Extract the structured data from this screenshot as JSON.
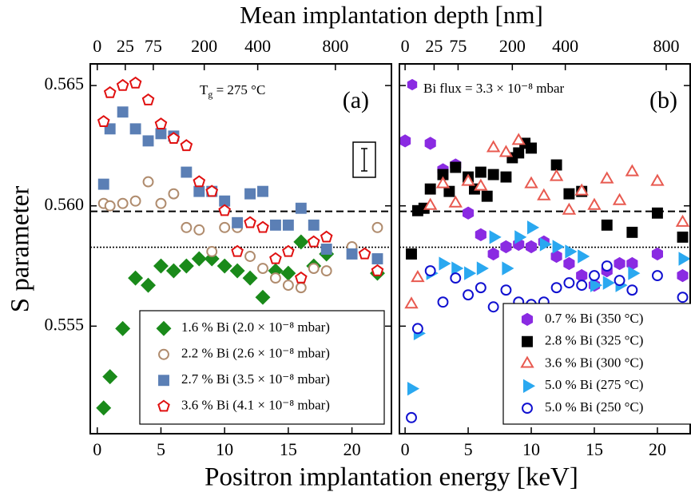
{
  "chart_data": [
    {
      "type": "scatter",
      "xlabel": "Positron implantation energy [keV]",
      "x2label": "Mean implantation depth [nm]",
      "ylabel": "S parameter",
      "xlim": [
        -0.55,
        23.1
      ],
      "ylim": [
        0.55053,
        0.5659
      ],
      "xticks": [
        0,
        5,
        10,
        15,
        20
      ],
      "x2ticks": [
        0,
        {
          "value": 2.2,
          "label": "25"
        },
        {
          "value": 4.4,
          "label": "75"
        },
        {
          "value": 8.4,
          "label": "200"
        },
        {
          "value": 12.6,
          "label": "400"
        },
        {
          "value": 18.7,
          "label": "800"
        }
      ],
      "yticks": [
        {
          "value": 0.555,
          "label": "0.555"
        },
        {
          "value": 0.56,
          "label": "0.560"
        },
        {
          "value": 0.565,
          "label": "0.565"
        }
      ],
      "grid": false,
      "hlines": [
        {
          "value": 0.55977,
          "style": "dashed"
        },
        {
          "value": 0.55828,
          "style": "dotted"
        }
      ],
      "legend": "lower right",
      "annotations": [
        {
          "text": "(a)"
        },
        {
          "text": "T",
          "subscript": "g",
          "suffix": " = 275 °C"
        }
      ],
      "series": [
        {
          "name": "1.6 % Bi (2.0 × 10⁻⁸ mbar)",
          "color": "#1a8a1a",
          "marker": "diamond",
          "filled": true,
          "x": [
            0.5,
            1,
            2,
            3,
            4,
            5,
            6,
            7,
            8,
            9,
            10,
            11,
            12,
            13,
            14,
            15,
            16,
            17,
            18,
            22
          ],
          "values": [
            0.5516,
            0.5529,
            0.5549,
            0.557,
            0.5567,
            0.5575,
            0.5573,
            0.5575,
            0.5578,
            0.5578,
            0.5575,
            0.5573,
            0.557,
            0.5562,
            0.5573,
            0.5572,
            0.5585,
            0.5575,
            0.558,
            0.5572
          ]
        },
        {
          "name": "2.2 % Bi (2.6 × 10⁻⁸ mbar)",
          "color": "#b08c6e",
          "marker": "circle",
          "filled": false,
          "x": [
            0.5,
            1,
            2,
            3,
            4,
            5,
            6,
            7,
            8,
            9,
            10,
            11,
            12,
            13,
            14,
            15,
            16,
            17,
            18,
            20,
            22
          ],
          "values": [
            0.5601,
            0.56,
            0.5601,
            0.5602,
            0.561,
            0.5601,
            0.5605,
            0.5591,
            0.559,
            0.5581,
            0.5591,
            0.5591,
            0.5579,
            0.5574,
            0.557,
            0.5567,
            0.5566,
            0.5574,
            0.5573,
            0.5583,
            0.5591
          ]
        },
        {
          "name": "2.7 % Bi (3.5 × 10⁻⁸ mbar)",
          "color": "#5b7fb5",
          "marker": "square",
          "filled": true,
          "x": [
            0.5,
            1,
            2,
            3,
            4,
            5,
            6,
            7,
            8,
            9,
            10,
            11,
            12,
            13,
            14,
            15,
            16,
            17,
            18,
            20,
            22
          ],
          "values": [
            0.5609,
            0.5632,
            0.5639,
            0.5632,
            0.5627,
            0.563,
            0.5629,
            0.5614,
            0.5606,
            0.5606,
            0.5602,
            0.5593,
            0.5605,
            0.5606,
            0.5592,
            0.5592,
            0.5599,
            0.5592,
            0.5582,
            0.558,
            0.5578
          ]
        },
        {
          "name": "3.6 % Bi (4.1 × 10⁻⁸ mbar)",
          "color": "#e01010",
          "marker": "pentagon",
          "filled": false,
          "x": [
            0.5,
            1,
            2,
            3,
            4,
            5,
            6,
            7,
            8,
            9,
            10,
            11,
            12,
            13,
            14,
            15,
            16,
            17,
            18,
            21,
            22
          ],
          "values": [
            0.5635,
            0.5647,
            0.565,
            0.5651,
            0.5644,
            0.5634,
            0.5628,
            0.5625,
            0.561,
            0.5606,
            0.5598,
            0.5581,
            0.5593,
            0.5591,
            0.5578,
            0.5581,
            0.557,
            0.5585,
            0.5587,
            0.558,
            0.5573
          ]
        }
      ]
    },
    {
      "type": "scatter",
      "xlim": [
        -0.45,
        22.6
      ],
      "ylim": [
        0.55053,
        0.5659
      ],
      "xticks": [
        0,
        5,
        10,
        15,
        20
      ],
      "x2ticks": [
        0,
        {
          "value": 2.3,
          "label": "25"
        },
        {
          "value": 4.2,
          "label": "75"
        },
        {
          "value": 8.5,
          "label": "200"
        },
        {
          "value": 12.7,
          "label": "400"
        },
        {
          "value": 20.7,
          "label": "800"
        }
      ],
      "yticks": [
        0.555,
        0.56,
        0.565
      ],
      "grid": false,
      "hlines": [
        {
          "value": 0.55977,
          "style": "dashed"
        },
        {
          "value": 0.55828,
          "style": "dotted"
        }
      ],
      "legend": "lower right",
      "annotations": [
        {
          "text": "(b)"
        },
        {
          "text": "Bi flux  = 3.3 × 10⁻⁸ mbar"
        }
      ],
      "series": [
        {
          "name": "0.7 % Bi (350 °C)",
          "color": "#8a2be2",
          "marker": "hexagon",
          "filled": true,
          "x": [
            0,
            2,
            3,
            4,
            5,
            6,
            7,
            8,
            9,
            10,
            11,
            12,
            13,
            14,
            15,
            16,
            17,
            18,
            20,
            22
          ],
          "values": [
            0.5627,
            0.5626,
            0.5615,
            0.5617,
            0.5597,
            0.5588,
            0.558,
            0.5583,
            0.5584,
            0.5583,
            0.5585,
            0.5579,
            0.5576,
            0.5571,
            0.5567,
            0.5573,
            0.5576,
            0.5576,
            0.558,
            0.5571
          ]
        },
        {
          "name": "2.8 % Bi (325 °C)",
          "color": "#000000",
          "marker": "square",
          "filled": true,
          "x": [
            0.5,
            1,
            1.5,
            2,
            3,
            3.5,
            4,
            5,
            5.5,
            6,
            6.5,
            7,
            8,
            8.5,
            9,
            9.5,
            10,
            12,
            13,
            14,
            16,
            18,
            20,
            22
          ],
          "values": [
            0.558,
            0.5598,
            0.5599,
            0.5607,
            0.5613,
            0.5606,
            0.5616,
            0.5612,
            0.5607,
            0.5614,
            0.5604,
            0.5613,
            0.5612,
            0.562,
            0.5622,
            0.5626,
            0.5624,
            0.5617,
            0.5605,
            0.5606,
            0.5592,
            0.5589,
            0.5597,
            0.5587
          ]
        },
        {
          "name": "3.6 % Bi (300 °C)",
          "color": "#e85a50",
          "marker": "triangle-up",
          "filled": false,
          "x": [
            0.5,
            1,
            2,
            3,
            4,
            5,
            6,
            7,
            8,
            9,
            10,
            11,
            12,
            13,
            14,
            15,
            16,
            17,
            18,
            20,
            22
          ],
          "values": [
            0.5559,
            0.557,
            0.56,
            0.5609,
            0.5601,
            0.561,
            0.5608,
            0.5624,
            0.5622,
            0.5627,
            0.5609,
            0.5604,
            0.5612,
            0.5598,
            0.5606,
            0.56,
            0.5611,
            0.5602,
            0.5614,
            0.561,
            0.5593
          ]
        },
        {
          "name": "5.0 % Bi (275 °C)",
          "color": "#2aa8f0",
          "marker": "triangle-right",
          "filled": true,
          "x": [
            0.5,
            1,
            2,
            3,
            4,
            5,
            6,
            7,
            8,
            9,
            10,
            11,
            12,
            13,
            14,
            15,
            16,
            17,
            18,
            22
          ],
          "values": [
            0.5524,
            0.5547,
            0.5572,
            0.5576,
            0.5574,
            0.5572,
            0.5574,
            0.5587,
            0.5574,
            0.5587,
            0.5591,
            0.5584,
            0.5583,
            0.5581,
            0.5579,
            0.5567,
            0.5568,
            0.5567,
            0.5572,
            0.5578
          ]
        },
        {
          "name": "5.0 % Bi (250 °C)",
          "color": "#1010d0",
          "marker": "circle",
          "filled": false,
          "x": [
            0.5,
            1,
            2,
            3,
            4,
            5,
            6,
            7,
            8,
            9,
            10,
            11,
            12,
            13,
            14,
            15,
            16,
            17,
            18,
            20,
            21.5,
            22
          ],
          "values": [
            0.5512,
            0.5549,
            0.5573,
            0.556,
            0.557,
            0.5563,
            0.5566,
            0.5558,
            0.5565,
            0.556,
            0.5559,
            0.556,
            0.5566,
            0.5568,
            0.5567,
            0.5571,
            0.5575,
            0.5569,
            0.5565,
            0.5571,
            0.5555,
            0.5562
          ]
        }
      ]
    }
  ]
}
